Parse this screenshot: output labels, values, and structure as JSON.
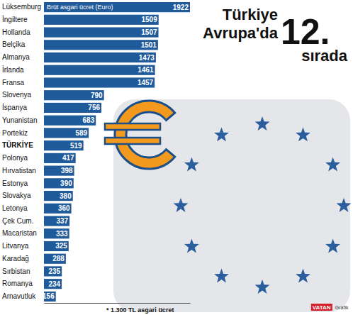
{
  "chart_data": {
    "type": "bar",
    "orientation": "horizontal",
    "title": "Türkiye Avrupa'da 12. sırada",
    "xlabel": "Brüt asgari ücret (Euro)",
    "note": "* 1.300 TL asgari ücret",
    "source": "VATAN Grafik",
    "categories": [
      "Lüksemburg",
      "İngiltere",
      "Hollanda",
      "Belçika",
      "Almanya",
      "İrlanda",
      "Fransa",
      "Slovenya",
      "İspanya",
      "Yunanistan",
      "Portekiz",
      "TÜRKİYE",
      "Polonya",
      "Hırvatistan",
      "Estonya",
      "Slovakya",
      "Letonya",
      "Çek Cum.",
      "Macaristan",
      "Litvanya",
      "Karadağ",
      "Sırbistan",
      "Romanya",
      "Arnavutluk"
    ],
    "values": [
      1922,
      1509,
      1507,
      1501,
      1473,
      1461,
      1457,
      790,
      756,
      683,
      589,
      519,
      417,
      398,
      390,
      380,
      360,
      337,
      333,
      325,
      288,
      235,
      234,
      156
    ],
    "color": "#1f5b9b",
    "xlim": [
      0,
      1922
    ],
    "xticks": [],
    "data_labels": true,
    "tick_labels": "y",
    "grid": false
  }
}
